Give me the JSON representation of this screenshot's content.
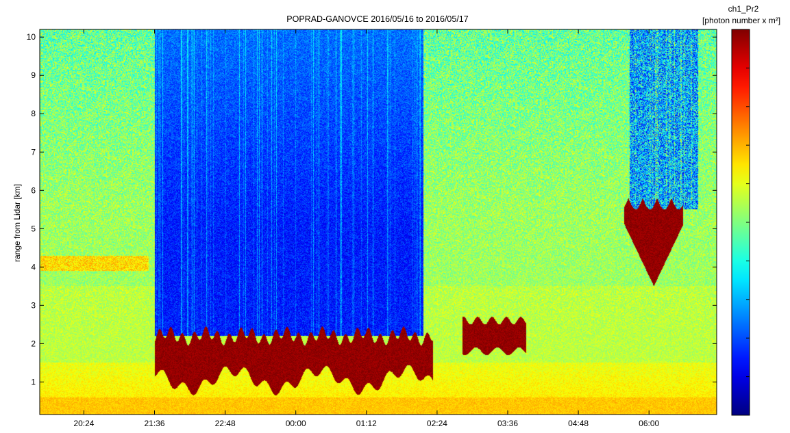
{
  "chart_data": {
    "type": "heatmap",
    "title": "POPRAD-GANOVCE 2016/05/16 to 2016/05/17",
    "xlabel": "",
    "ylabel": "range from Lidar [km]",
    "colorbar": {
      "title_line1": "ch1_Pr2",
      "title_line2": "[photon number x m²]",
      "colormap": "jet",
      "tick_labels": []
    },
    "x_axis": {
      "unit": "hours since 2016/05/16 00:00",
      "range": [
        19.65,
        31.15
      ],
      "ticks": [
        {
          "value": 20.4,
          "label": "20:24"
        },
        {
          "value": 21.6,
          "label": "21:36"
        },
        {
          "value": 22.8,
          "label": "22:48"
        },
        {
          "value": 24.0,
          "label": "00:00"
        },
        {
          "value": 25.2,
          "label": "01:12"
        },
        {
          "value": 26.4,
          "label": "02:24"
        },
        {
          "value": 27.6,
          "label": "03:36"
        },
        {
          "value": 28.8,
          "label": "04:48"
        },
        {
          "value": 30.0,
          "label": "06:00"
        }
      ]
    },
    "y_axis": {
      "unit": "km",
      "range": [
        0.15,
        10.2
      ],
      "ticks": [
        1,
        2,
        3,
        4,
        5,
        6,
        7,
        8,
        9,
        10
      ]
    },
    "features": [
      {
        "kind": "clear_air_low_signal",
        "time_range": [
          "21:36",
          "02:10"
        ],
        "altitude_km": [
          2.2,
          10.2
        ]
      },
      {
        "kind": "cloud_layer_strong",
        "time_range": [
          "21:36",
          "02:20"
        ],
        "altitude_km": [
          1.0,
          2.3
        ]
      },
      {
        "kind": "cloud_strong",
        "time_range": [
          "02:50",
          "03:55"
        ],
        "altitude_km": [
          1.8,
          2.6
        ]
      },
      {
        "kind": "cloud_strong",
        "time_range": [
          "05:35",
          "06:35"
        ],
        "altitude_km": [
          3.5,
          5.8
        ]
      },
      {
        "kind": "aerosol_layer_elevated",
        "time_range": [
          "19:40",
          "21:30"
        ],
        "altitude_km": [
          3.9,
          4.3
        ]
      },
      {
        "kind": "noisy_region",
        "time_range": [
          "05:40",
          "06:50"
        ],
        "altitude_km": [
          5.5,
          10.2
        ]
      }
    ]
  }
}
